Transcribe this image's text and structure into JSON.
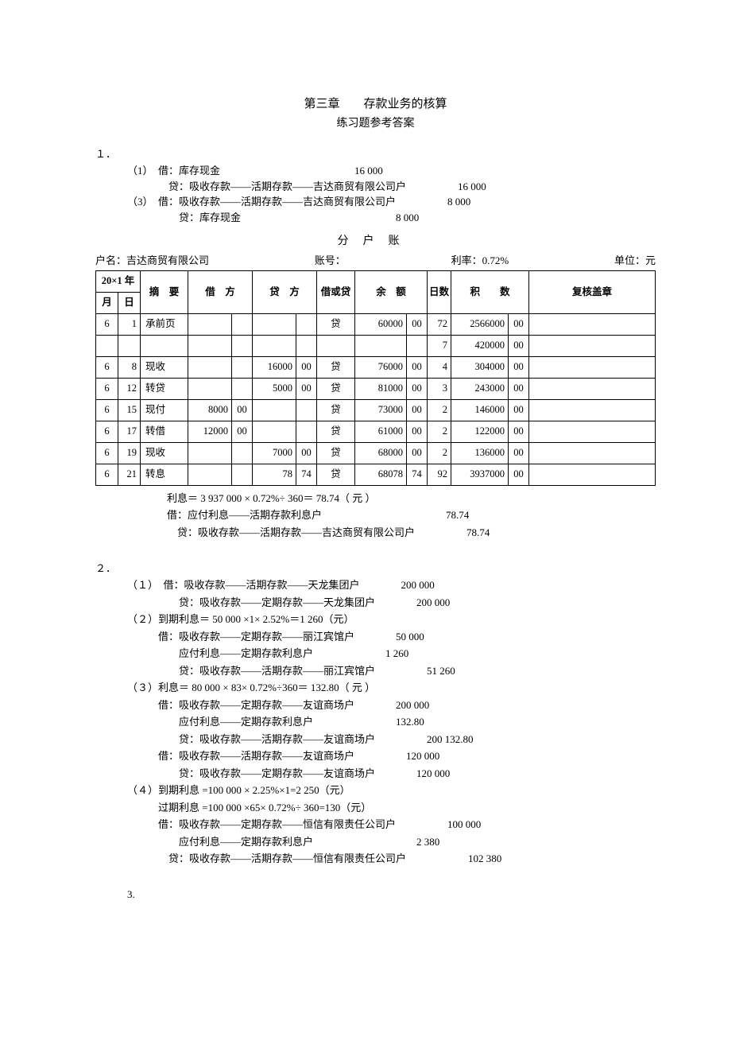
{
  "title": {
    "main": "第三章　　存款业务的核算",
    "sub": "练习题参考答案"
  },
  "q1": {
    "num": "１．",
    "e1_label": "（1）　借：库存现金",
    "e1_amt": "16 000",
    "e1_cr": "　　　　贷：吸收存款――活期存款――吉达商贸有限公司户",
    "e1_cr_amt": "16 000",
    "e3_label": "（3）　借：吸收存款――活期存款――吉达商贸有限公司户",
    "e3_amt": "8 000",
    "e3_cr": "　　　　　贷：库存现金",
    "e3_cr_amt": "8 000",
    "ledger_title": "分户账",
    "meta_name_lbl": "户名：",
    "meta_name": "吉达商贸有限公司",
    "meta_acct_lbl": "账号：",
    "meta_rate_lbl": "利率：",
    "meta_rate": "0.72%",
    "meta_unit_lbl": "单位：元",
    "hdr": {
      "year": "20×1 年",
      "month": "月",
      "day": "日",
      "desc": "摘　要",
      "dr": "借　方",
      "cr": "贷　方",
      "dc": "借或贷",
      "bal": "余　额",
      "days": "日数",
      "prod": "积　　数",
      "chk": "复核盖章"
    },
    "rows": [
      {
        "m": "6",
        "d": "1",
        "desc": "承前页",
        "dr": "",
        "drc": "",
        "cr": "",
        "crc": "",
        "dc": "贷",
        "bal": "60000",
        "balc": "00",
        "days": "72",
        "prod": "2566000",
        "prodc": "00"
      },
      {
        "m": "",
        "d": "",
        "desc": "",
        "dr": "",
        "drc": "",
        "cr": "",
        "crc": "",
        "dc": "",
        "bal": "",
        "balc": "",
        "days": "7",
        "prod": "420000",
        "prodc": "00"
      },
      {
        "m": "6",
        "d": "8",
        "desc": "现收",
        "dr": "",
        "drc": "",
        "cr": "16000",
        "crc": "00",
        "dc": "贷",
        "bal": "76000",
        "balc": "00",
        "days": "4",
        "prod": "304000",
        "prodc": "00"
      },
      {
        "m": "6",
        "d": "12",
        "desc": "转贷",
        "dr": "",
        "drc": "",
        "cr": "5000",
        "crc": "00",
        "dc": "贷",
        "bal": "81000",
        "balc": "00",
        "days": "3",
        "prod": "243000",
        "prodc": "00"
      },
      {
        "m": "6",
        "d": "15",
        "desc": "现付",
        "dr": "8000",
        "drc": "00",
        "cr": "",
        "crc": "",
        "dc": "贷",
        "bal": "73000",
        "balc": "00",
        "days": "2",
        "prod": "146000",
        "prodc": "00"
      },
      {
        "m": "6",
        "d": "17",
        "desc": "转借",
        "dr": "12000",
        "drc": "00",
        "cr": "",
        "crc": "",
        "dc": "贷",
        "bal": "61000",
        "balc": "00",
        "days": "2",
        "prod": "122000",
        "prodc": "00"
      },
      {
        "m": "6",
        "d": "19",
        "desc": "现收",
        "dr": "",
        "drc": "",
        "cr": "7000",
        "crc": "00",
        "dc": "贷",
        "bal": "68000",
        "balc": "00",
        "days": "2",
        "prod": "136000",
        "prodc": "00"
      },
      {
        "m": "6",
        "d": "21",
        "desc": "转息",
        "dr": "",
        "drc": "",
        "cr": "78",
        "crc": "74",
        "dc": "贷",
        "bal": "68078",
        "balc": "74",
        "days": "92",
        "prod": "3937000",
        "prodc": "00"
      }
    ],
    "calc1": "利息＝ 3 937 000 × 0.72%÷ 360＝ 78.74（ 元 ）",
    "calc2": "借：应付利息――活期存款利息户",
    "calc2_amt": "78.74",
    "calc3": "　贷：吸收存款――活期存款――吉达商贸有限公司户",
    "calc3_amt": "78.74"
  },
  "q2": {
    "num": "２．",
    "l1": "（１）　借：吸收存款――活期存款――天龙集团户　　　　200 000",
    "l2": "　　　　　贷：吸收存款――定期存款――天龙集团户　　　　200 000",
    "l3": "（２）到期利息＝ 50 000 ×1× 2.52%＝1 260（元）",
    "l4": "　　　借：吸收存款――定期存款――丽江宾馆户　　　　50 000",
    "l5": "　　　　　应付利息――定期存款利息户　　　　　　　1 260",
    "l6": "　　　　　贷：吸收存款――活期存款――丽江宾馆户　　　　　51 260",
    "l7": "（３）利息＝ 80 000 × 83× 0.72%÷360＝ 132.80（ 元 ）",
    "l8": "　　　借：吸收存款――定期存款――友谊商场户　　　　200 000",
    "l9": "　　　　　应付利息――定期存款利息户　　　　　　　　132.80",
    "l10": "　　　　　贷：吸收存款――活期存款――友谊商场户　　　　　200 132.80",
    "l11": "　　　借：吸收存款――活期存款――友谊商场户　　　　　120 000",
    "l12": "　　　　　贷：吸收存款――定期存款――友谊商场户　　　　120 000",
    "l13": "（４）到期利息 =100 000 × 2.25%×1=2 250（元）",
    "l14": "　　　过期利息 =100 000 ×65× 0.72%÷ 360=130（元）",
    "l15": "　　　借：吸收存款――定期存款――恒信有限责任公司户　　　　　100 000",
    "l16": "　　　　　应付利息――定期存款利息户　　　　　　　　　　2 380",
    "l17": "　　　　贷：吸收存款――活期存款――恒信有限责任公司户　　　　　　102 380"
  },
  "q3": {
    "num": "3."
  }
}
